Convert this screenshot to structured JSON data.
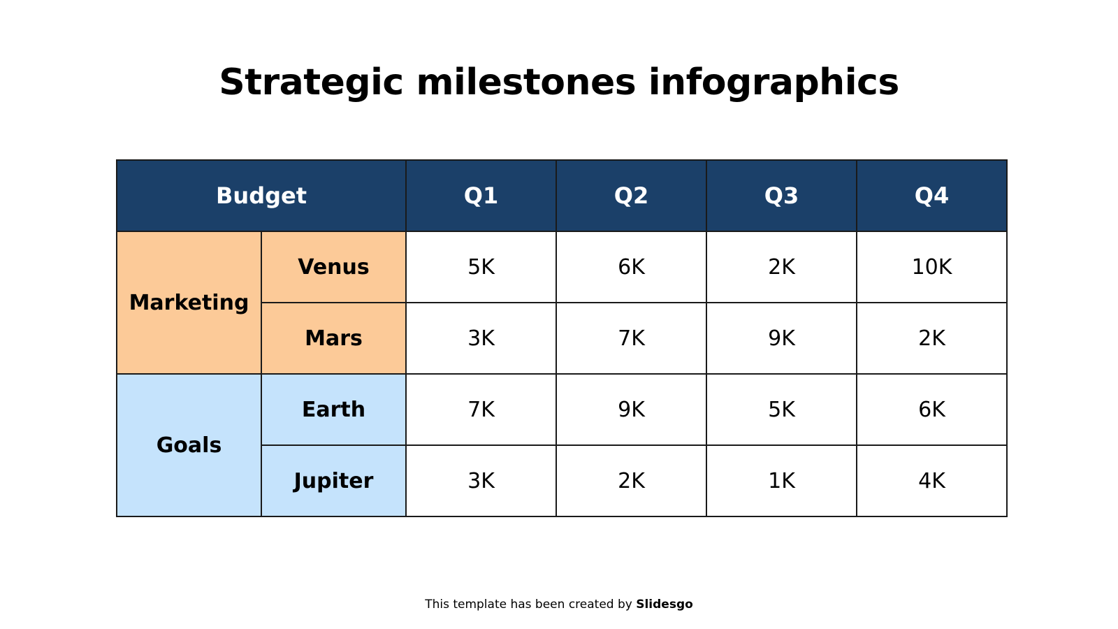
{
  "title": "Strategic milestones infographics",
  "colors": {
    "header_bg": "#1b4069",
    "header_text": "#ffffff",
    "marketing_bg": "#fcca98",
    "goals_bg": "#c5e3fc",
    "border": "#1a1a1a"
  },
  "table": {
    "header": {
      "budget": "Budget",
      "quarters": [
        "Q1",
        "Q2",
        "Q3",
        "Q4"
      ]
    },
    "groups": [
      {
        "label": "Marketing",
        "rows": [
          {
            "label": "Venus",
            "values": [
              "5K",
              "6K",
              "2K",
              "10K"
            ]
          },
          {
            "label": "Mars",
            "values": [
              "3K",
              "7K",
              "9K",
              "2K"
            ]
          }
        ]
      },
      {
        "label": "Goals",
        "rows": [
          {
            "label": "Earth",
            "values": [
              "7K",
              "9K",
              "5K",
              "6K"
            ]
          },
          {
            "label": "Jupiter",
            "values": [
              "3K",
              "2K",
              "1K",
              "4K"
            ]
          }
        ]
      }
    ]
  },
  "footer": {
    "text": "This template has been created by ",
    "brand": "Slidesgo"
  }
}
